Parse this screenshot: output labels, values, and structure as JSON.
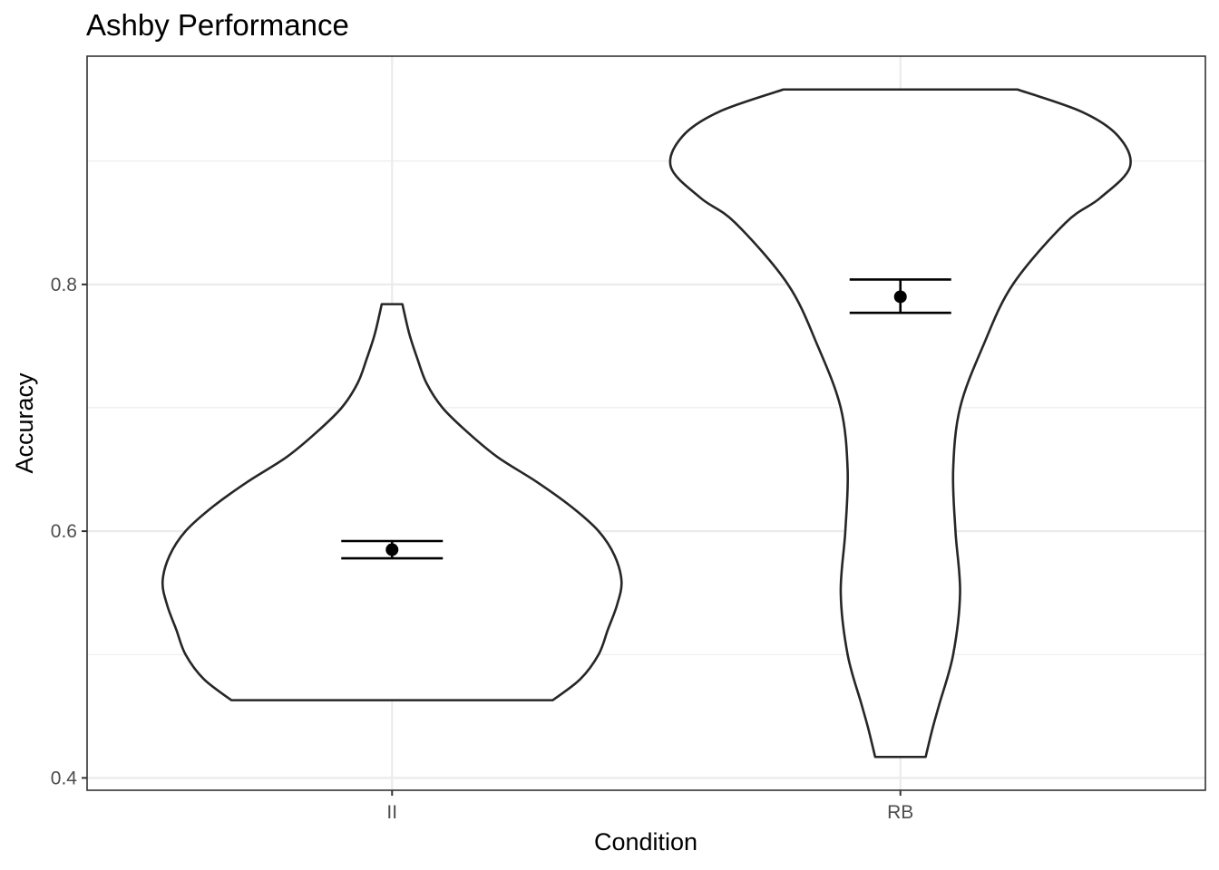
{
  "chart_data": {
    "type": "violin",
    "title": "Ashby Performance",
    "xlabel": "Condition",
    "ylabel": "Accuracy",
    "categories": [
      "II",
      "RB"
    ],
    "ylim": [
      0.39,
      0.985
    ],
    "y_ticks": [
      0.4,
      0.6,
      0.8
    ],
    "y_tick_labels": [
      "0.4",
      "0.6",
      "0.8"
    ],
    "grid": true,
    "theme": "bw",
    "violins": [
      {
        "category": "II",
        "ymin": 0.463,
        "ymax": 0.784,
        "density_profile": [
          [
            0.463,
            0.7
          ],
          [
            0.48,
            0.82
          ],
          [
            0.5,
            0.9
          ],
          [
            0.52,
            0.94
          ],
          [
            0.54,
            0.98
          ],
          [
            0.559,
            1.0
          ],
          [
            0.58,
            0.97
          ],
          [
            0.6,
            0.9
          ],
          [
            0.62,
            0.78
          ],
          [
            0.64,
            0.63
          ],
          [
            0.66,
            0.46
          ],
          [
            0.68,
            0.33
          ],
          [
            0.7,
            0.22
          ],
          [
            0.72,
            0.15
          ],
          [
            0.74,
            0.11
          ],
          [
            0.76,
            0.075
          ],
          [
            0.784,
            0.045
          ]
        ],
        "mean": 0.585,
        "error_low": 0.578,
        "error_high": 0.592
      },
      {
        "category": "RB",
        "ymin": 0.417,
        "ymax": 0.958,
        "density_profile": [
          [
            0.417,
            0.11
          ],
          [
            0.44,
            0.14
          ],
          [
            0.46,
            0.17
          ],
          [
            0.5,
            0.23
          ],
          [
            0.55,
            0.26
          ],
          [
            0.6,
            0.24
          ],
          [
            0.65,
            0.23
          ],
          [
            0.7,
            0.26
          ],
          [
            0.75,
            0.36
          ],
          [
            0.8,
            0.49
          ],
          [
            0.85,
            0.72
          ],
          [
            0.87,
            0.87
          ],
          [
            0.895,
            1.0
          ],
          [
            0.92,
            0.95
          ],
          [
            0.94,
            0.79
          ],
          [
            0.958,
            0.51
          ]
        ],
        "mean": 0.79,
        "error_low": 0.777,
        "error_high": 0.804
      }
    ]
  }
}
